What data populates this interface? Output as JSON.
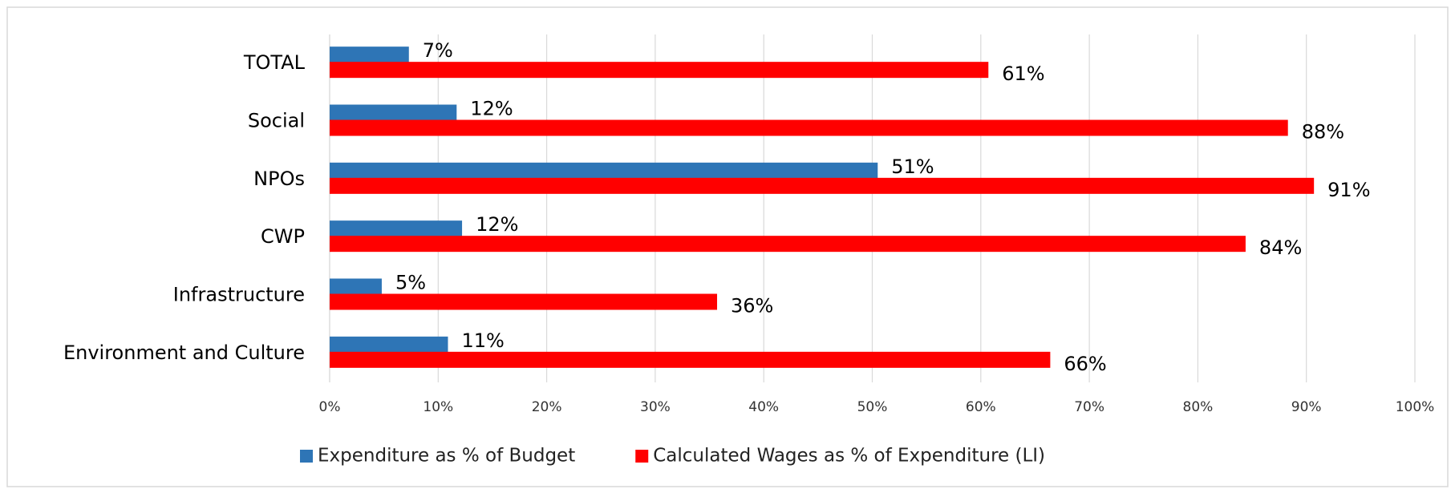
{
  "chart_data": {
    "type": "hbar",
    "categories": [
      "TOTAL",
      "Social",
      "NPOs",
      "CWP",
      "Infrastructure",
      "Environment and Culture"
    ],
    "series": [
      {
        "name": "Expenditure as % of Budget",
        "color": "#2e75b6",
        "values": [
          7.3,
          11.7,
          50.5,
          12.2,
          4.8,
          10.9
        ],
        "value_labels": [
          "7%",
          "12%",
          "51%",
          "12%",
          "5%",
          "11%"
        ]
      },
      {
        "name": "Calculated Wages as % of Expenditure (LI)",
        "color": "#ff0000",
        "values": [
          60.7,
          88.3,
          90.7,
          84.4,
          35.7,
          66.4
        ],
        "value_labels": [
          "61%",
          "88%",
          "91%",
          "84%",
          "36%",
          "66%"
        ]
      }
    ],
    "xlim": [
      0,
      100
    ],
    "xticks": [
      {
        "value": 0,
        "label": "0%"
      },
      {
        "value": 10,
        "label": "10%"
      },
      {
        "value": 20,
        "label": "20%"
      },
      {
        "value": 30,
        "label": "30%"
      },
      {
        "value": 40,
        "label": "40%"
      },
      {
        "value": 50,
        "label": "50%"
      },
      {
        "value": 60,
        "label": "60%"
      },
      {
        "value": 70,
        "label": "70%"
      },
      {
        "value": 80,
        "label": "80%"
      },
      {
        "value": 90,
        "label": "90%"
      },
      {
        "value": 100,
        "label": "100%"
      }
    ],
    "grid": true,
    "legend": "bottom"
  }
}
